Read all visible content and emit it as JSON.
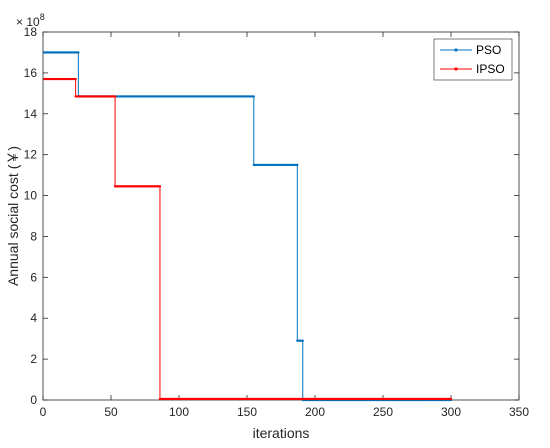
{
  "chart_data": {
    "type": "line",
    "xlabel": "iterations",
    "ylabel": "Annual social cost (￥)",
    "exponent_label": "× 10",
    "exponent_power": "8",
    "xlim": [
      0,
      350
    ],
    "ylim": [
      0,
      18
    ],
    "xticks": [
      0,
      50,
      100,
      150,
      200,
      250,
      300,
      350
    ],
    "yticks": [
      0,
      2,
      4,
      6,
      8,
      10,
      12,
      14,
      16,
      18
    ],
    "legend_position": "top-right",
    "series": [
      {
        "name": "PSO",
        "color": "#0072BD",
        "x": [
          1,
          26,
          26,
          155,
          155,
          187,
          187,
          191,
          191,
          300
        ],
        "y": [
          17.0,
          17.0,
          14.85,
          14.85,
          11.5,
          11.5,
          2.9,
          2.9,
          0.0,
          0.0
        ]
      },
      {
        "name": "IPSO",
        "color": "#FF0000",
        "x": [
          1,
          24,
          24,
          53,
          53,
          86,
          86,
          300
        ],
        "y": [
          15.7,
          15.7,
          14.85,
          14.85,
          10.45,
          10.45,
          0.05,
          0.05
        ]
      }
    ]
  }
}
